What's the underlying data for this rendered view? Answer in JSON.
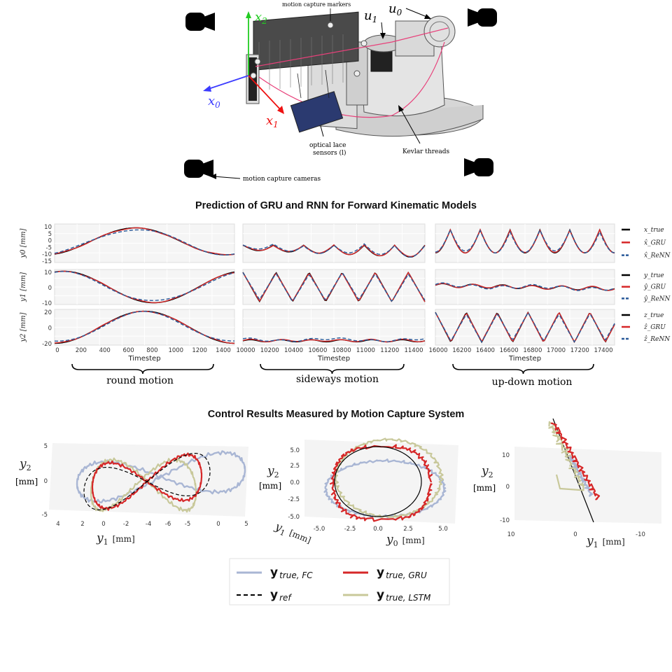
{
  "figure": {
    "labels": {
      "markers": "motion capture markers",
      "u1": "u",
      "u1_sub": "1",
      "u0": "u",
      "u0_sub": "0",
      "x0": "x",
      "x0_sub": "0",
      "x1": "x",
      "x1_sub": "1",
      "x2": "x",
      "x2_sub": "2",
      "lace1": "optical lace",
      "lace2": "sensors (l)",
      "kevlar": "Kevlar threads",
      "cameras": "motion capture cameras"
    },
    "colors": {
      "x0": "#3b3bff",
      "x1": "#ee1111",
      "x2": "#22cc22",
      "thread": "#e8407a",
      "true": "#000000",
      "gru": "#d62728",
      "renn": "#2a5a9a",
      "fc": "#a9b6d4",
      "lstm": "#c8c89a",
      "ref": "#000000"
    }
  },
  "section1": {
    "title": "Prediction of GRU and RNN for Forward Kinematic Models"
  },
  "section2": {
    "title": "Control Results Measured by Motion Capture System"
  },
  "chart_data": [
    {
      "type": "line",
      "title": "Prediction of GRU and RNN for Forward Kinematic Models",
      "panel_groups": [
        {
          "name": "round motion",
          "xlabel": "Timestep",
          "x_ticks": [
            "0",
            "200",
            "400",
            "600",
            "800",
            "1000",
            "1200",
            "1400"
          ],
          "xlim": [
            0,
            1500
          ]
        },
        {
          "name": "sideways motion",
          "xlabel": "Timestep",
          "x_ticks": [
            "10000",
            "10200",
            "10400",
            "10600",
            "10800",
            "11000",
            "11200",
            "11400"
          ],
          "xlim": [
            10000,
            11500
          ]
        },
        {
          "name": "up-down motion",
          "xlabel": "Timestep",
          "x_ticks": [
            "16000",
            "16200",
            "16400",
            "16600",
            "16800",
            "17000",
            "17200",
            "17400"
          ],
          "xlim": [
            16000,
            17500
          ]
        }
      ],
      "rows": [
        {
          "ylabel": "y0 [mm]",
          "y_ticks": [
            "10",
            "5",
            "0",
            "-5",
            "-10",
            "-15"
          ],
          "ylim": [
            -15,
            12
          ],
          "legend": [
            "x_true",
            "x̂_GRU",
            "x̂_ReNN"
          ]
        },
        {
          "ylabel": "y1 [mm]",
          "y_ticks": [
            "10",
            "0",
            "-10"
          ],
          "ylim": [
            -15,
            15
          ],
          "legend": [
            "y_true",
            "ŷ_GRU",
            "ŷ_ReNN"
          ]
        },
        {
          "ylabel": "y2 [mm]",
          "y_ticks": [
            "20",
            "0",
            "-20"
          ],
          "ylim": [
            -30,
            35
          ],
          "legend": [
            "z_true",
            "ẑ_GRU",
            "ẑ_ReNN"
          ]
        }
      ]
    },
    {
      "type": "line",
      "title": "Control Results Measured by Motion Capture System",
      "panels": [
        {
          "xlabel_sym": "y",
          "xlabel_sub": "1",
          "xlabel_unit": "[mm]",
          "ylabel_sym": "y",
          "ylabel_sub": "2",
          "ylabel_unit": "[mm]",
          "x_ticks": [
            "4",
            "2",
            "0",
            "-2",
            "-4",
            "-6",
            "-5",
            "0",
            "5"
          ],
          "y_ticks": [
            "5",
            "0",
            "-5"
          ]
        },
        {
          "xlabel_sym": "y",
          "xlabel_sub": "0",
          "xlabel_unit": "[mm]",
          "ylabel_sym": "y",
          "ylabel_sub": "2",
          "ylabel_unit": "[mm]",
          "x_ticks": [
            "-5.0",
            "-2.5",
            "0.0",
            "2.5",
            "5.0"
          ],
          "y_ticks": [
            "5.0",
            "2.5",
            "0.0",
            "-2.5",
            "-5.0"
          ],
          "extra_label": "y",
          "extra_sub": "1",
          "extra_unit": "[mm]"
        },
        {
          "xlabel_sym": "y",
          "xlabel_sub": "1",
          "xlabel_unit": "[mm]",
          "ylabel_sym": "y",
          "ylabel_sub": "2",
          "ylabel_unit": "[mm]",
          "x_ticks": [
            "10",
            "0",
            "-10"
          ],
          "y_ticks": [
            "10",
            "0",
            "-10"
          ]
        }
      ],
      "legend": [
        {
          "name": "y",
          "sub": "true, FC",
          "color": "#a9b6d4",
          "dash": false
        },
        {
          "name": "y",
          "sub": "true, GRU",
          "color": "#d62728",
          "dash": false
        },
        {
          "name": "y",
          "sub": "ref",
          "color": "#000000",
          "dash": true
        },
        {
          "name": "y",
          "sub": "true, LSTM",
          "color": "#c8c89a",
          "dash": false
        }
      ]
    }
  ]
}
